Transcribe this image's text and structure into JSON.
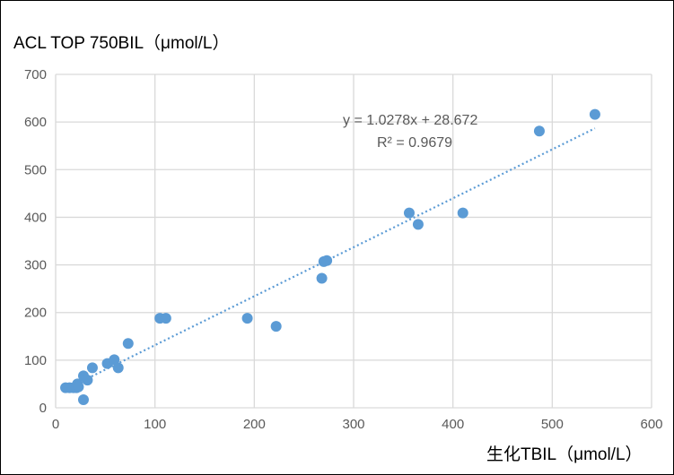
{
  "chart_data": {
    "type": "scatter",
    "ylabel": "ACL TOP 750BIL（μmol/L）",
    "xlabel": "生化TBIL（μmol/L）",
    "xlim": [
      0,
      600
    ],
    "ylim": [
      0,
      700
    ],
    "xticks": [
      0,
      100,
      200,
      300,
      400,
      500,
      600
    ],
    "yticks": [
      0,
      100,
      200,
      300,
      400,
      500,
      600,
      700
    ],
    "grid": true,
    "colors": {
      "points": "#5B9BD5",
      "trendline": "#5B9BD5",
      "grid": "#D9D9D9",
      "ticks": "#595959"
    },
    "series": [
      {
        "points": [
          {
            "x": 10,
            "y": 42
          },
          {
            "x": 14,
            "y": 42
          },
          {
            "x": 18,
            "y": 42
          },
          {
            "x": 21,
            "y": 42
          },
          {
            "x": 22,
            "y": 50
          },
          {
            "x": 23,
            "y": 44
          },
          {
            "x": 28,
            "y": 67
          },
          {
            "x": 28,
            "y": 17
          },
          {
            "x": 32,
            "y": 58
          },
          {
            "x": 37,
            "y": 84
          },
          {
            "x": 52,
            "y": 93
          },
          {
            "x": 59,
            "y": 101
          },
          {
            "x": 63,
            "y": 84
          },
          {
            "x": 73,
            "y": 135
          },
          {
            "x": 105,
            "y": 188
          },
          {
            "x": 111,
            "y": 188
          },
          {
            "x": 193,
            "y": 188
          },
          {
            "x": 222,
            "y": 171
          },
          {
            "x": 268,
            "y": 272
          },
          {
            "x": 270,
            "y": 307
          },
          {
            "x": 273,
            "y": 309
          },
          {
            "x": 356,
            "y": 409
          },
          {
            "x": 365,
            "y": 385
          },
          {
            "x": 410,
            "y": 409
          },
          {
            "x": 487,
            "y": 581
          },
          {
            "x": 543,
            "y": 616
          }
        ]
      }
    ],
    "trendline": {
      "slope": 1.0278,
      "intercept": 28.672,
      "x_range": [
        28,
        543
      ],
      "equation": "y = 1.0278x + 28.672",
      "r_squared": "R² = 0.9679"
    }
  }
}
